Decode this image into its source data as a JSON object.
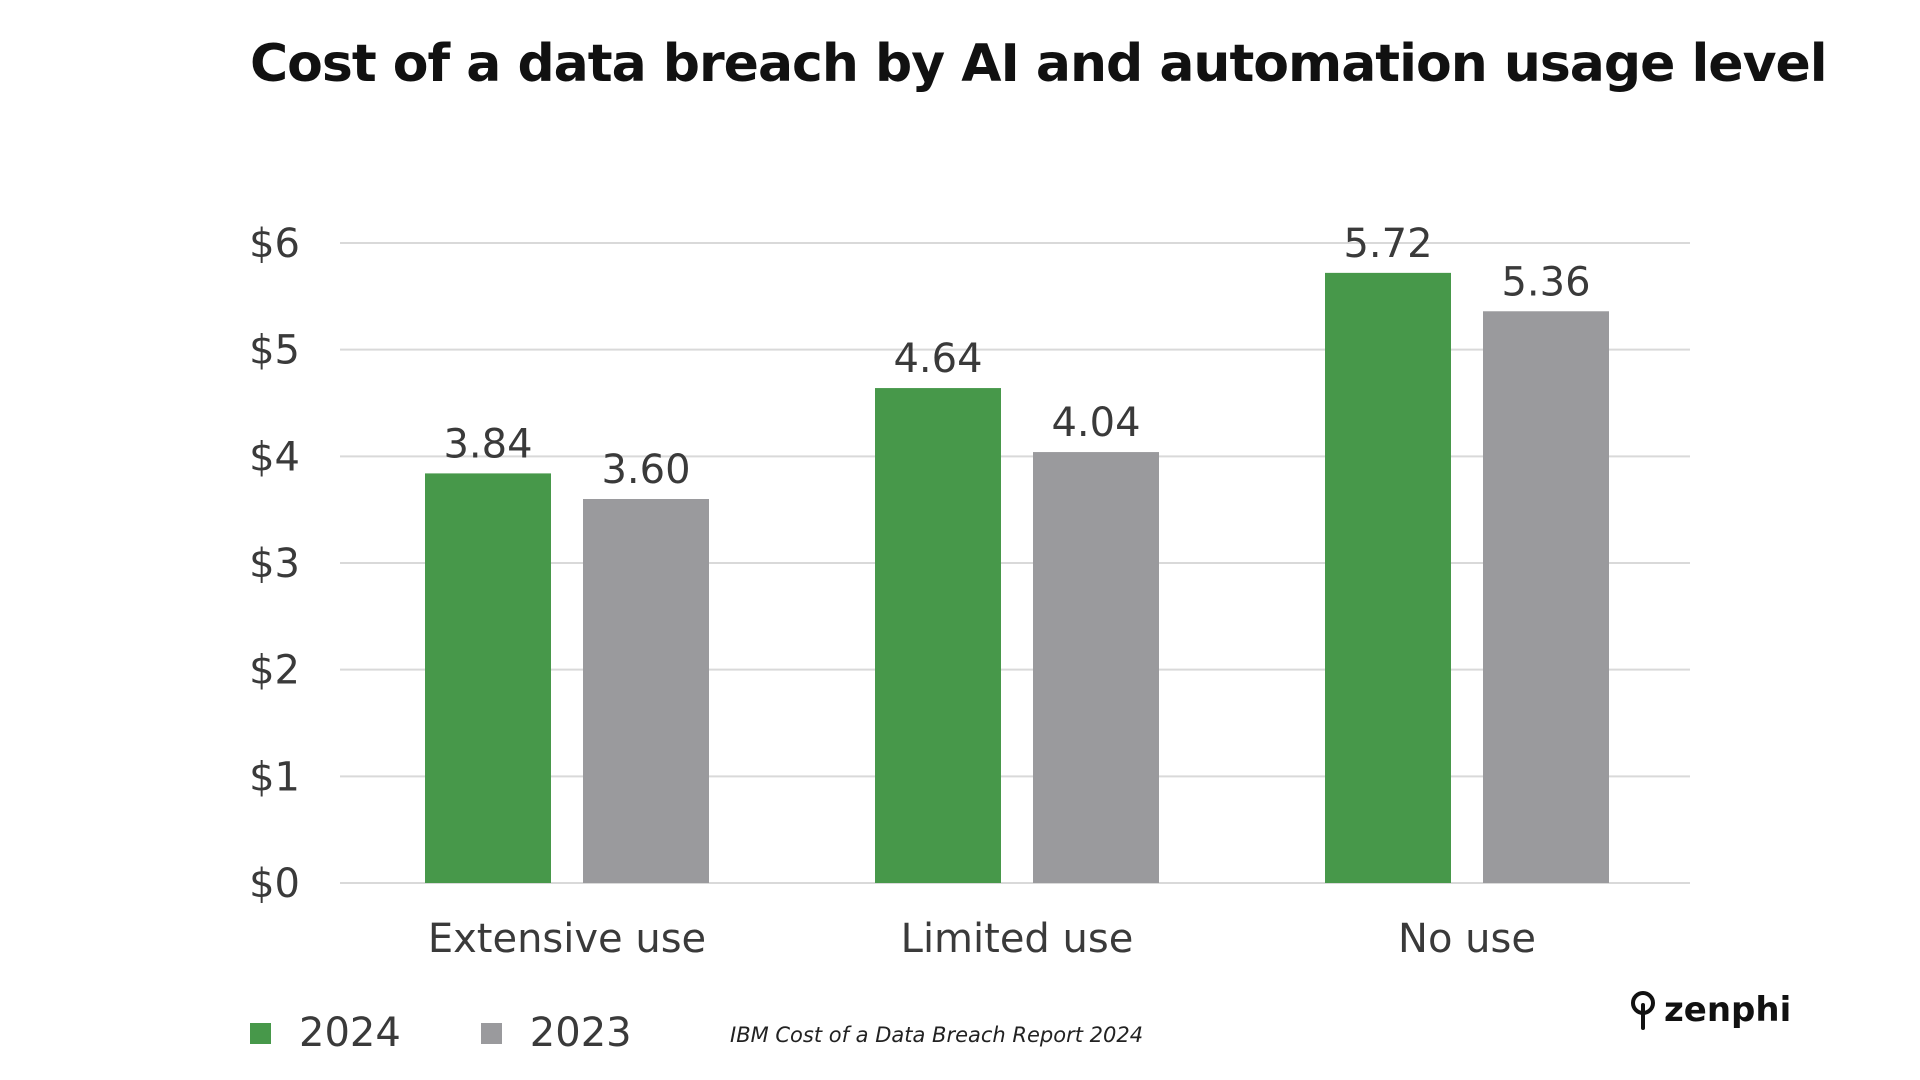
{
  "chart_data": {
    "type": "bar",
    "title": "Cost of a data breach by AI and automation usage level",
    "categories": [
      "Extensive use",
      "Limited use",
      "No use"
    ],
    "series": [
      {
        "name": "2024",
        "values": [
          3.84,
          4.64,
          5.72
        ],
        "value_labels": [
          "3.84",
          "4.64",
          "5.72"
        ],
        "color": "#47984a"
      },
      {
        "name": "2023",
        "values": [
          3.6,
          4.04,
          5.36
        ],
        "value_labels": [
          "3.60",
          "4.04",
          "5.36"
        ],
        "color": "#9a9a9d"
      }
    ],
    "yticks": [
      0,
      1,
      2,
      3,
      4,
      5,
      6
    ],
    "ytick_labels": [
      "$0",
      "$1",
      "$2",
      "$3",
      "$4",
      "$5",
      "$6"
    ],
    "ylim": [
      0,
      6
    ],
    "xlabel": "",
    "ylabel": "",
    "grid": true,
    "legend_position": "bottom-left"
  },
  "source_note": "IBM Cost of a Data Breach Report 2024",
  "brand": {
    "name": "zenphi",
    "icon": "zenphi-logo-icon"
  },
  "colors": {
    "grid": "#d9d9d9",
    "text": "#3a3a3a"
  }
}
